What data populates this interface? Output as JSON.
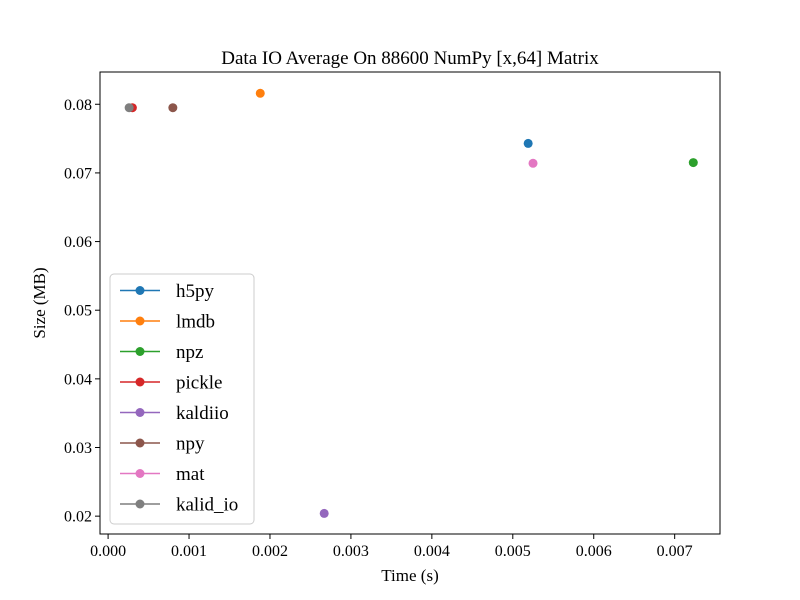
{
  "chart_data": {
    "type": "scatter",
    "title": "Data IO Average On 88600 NumPy [x,64] Matrix",
    "xlabel": "Time (s)",
    "ylabel": "Size (MB)",
    "xlim": [
      -0.0001,
      0.00756
    ],
    "ylim": [
      0.0174,
      0.0847
    ],
    "xticks": [
      0.0,
      0.001,
      0.002,
      0.003,
      0.004,
      0.005,
      0.006,
      0.007
    ],
    "xtick_labels": [
      "0.000",
      "0.001",
      "0.002",
      "0.003",
      "0.004",
      "0.005",
      "0.006",
      "0.007"
    ],
    "yticks": [
      0.02,
      0.03,
      0.04,
      0.05,
      0.06,
      0.07,
      0.08
    ],
    "ytick_labels": [
      "0.02",
      "0.03",
      "0.04",
      "0.05",
      "0.06",
      "0.07",
      "0.08"
    ],
    "grid": false,
    "legend_position": "lower-left",
    "series": [
      {
        "name": "h5py",
        "color": "#1f77b4",
        "x": [
          0.00519
        ],
        "y": [
          0.0743
        ]
      },
      {
        "name": "lmdb",
        "color": "#ff7f0e",
        "x": [
          0.00188
        ],
        "y": [
          0.0816
        ]
      },
      {
        "name": "npz",
        "color": "#2ca02c",
        "x": [
          0.00723
        ],
        "y": [
          0.0715
        ]
      },
      {
        "name": "pickle",
        "color": "#d62728",
        "x": [
          0.0003
        ],
        "y": [
          0.0795
        ]
      },
      {
        "name": "kaldiio",
        "color": "#9467bd",
        "x": [
          0.00267
        ],
        "y": [
          0.0204
        ]
      },
      {
        "name": "npy",
        "color": "#8c564b",
        "x": [
          0.0008
        ],
        "y": [
          0.0795
        ]
      },
      {
        "name": "mat",
        "color": "#e377c2",
        "x": [
          0.00525
        ],
        "y": [
          0.0714
        ]
      },
      {
        "name": "kalid_io",
        "color": "#7f7f7f",
        "x": [
          0.00026
        ],
        "y": [
          0.0795
        ]
      }
    ]
  }
}
